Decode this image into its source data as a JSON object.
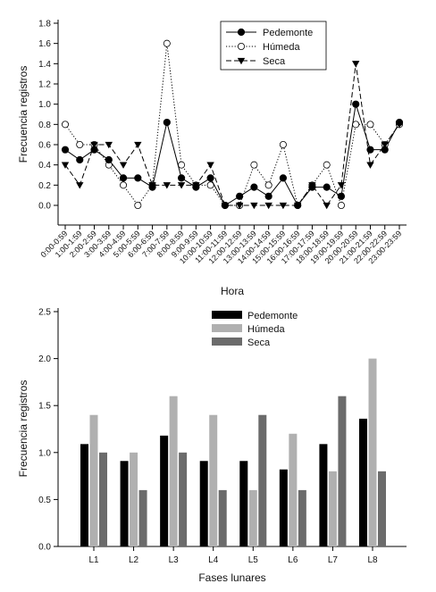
{
  "chart_data": [
    {
      "type": "line",
      "xlabel": "Hora",
      "ylabel": "Frecuencia registros",
      "ylim": [
        0,
        1.8
      ],
      "yticks": [
        "0.0",
        "0.2",
        "0.4",
        "0.6",
        "0.8",
        "1.0",
        "1.2",
        "1.4",
        "1.6",
        "1.8"
      ],
      "categories": [
        "0:00-0:59",
        "1:00-1:59",
        "2:00-2:59",
        "3:00-3:59",
        "4:00-4:59",
        "5:00-5:59",
        "6:00-6:59",
        "7:00-7:59",
        "8:00-8:59",
        "9:00-9:59",
        "10:00-10:59",
        "11:00-11:59",
        "12:00-12:59",
        "13:00-13:59",
        "14:00-14:59",
        "15:00-15:59",
        "16:00-16:59",
        "17:00-17:59",
        "18:00-18:59",
        "19:00-19:59",
        "20:00-20:59",
        "21:00-21:59",
        "22:00-22:59",
        "23:00-23:59"
      ],
      "legend_position": "top-right",
      "grid": false,
      "series": [
        {
          "name": "Pedemonte",
          "marker": "filled-circle",
          "line": "solid",
          "values": [
            0.55,
            0.45,
            0.55,
            0.45,
            0.27,
            0.27,
            0.18,
            0.82,
            0.27,
            0.18,
            0.27,
            0.0,
            0.09,
            0.18,
            0.09,
            0.27,
            0.0,
            0.18,
            0.18,
            0.09,
            1.0,
            0.55,
            0.55,
            0.82
          ]
        },
        {
          "name": "Húmeda",
          "marker": "open-circle",
          "line": "dotted",
          "values": [
            0.8,
            0.6,
            0.6,
            0.4,
            0.2,
            0.0,
            0.2,
            1.6,
            0.4,
            0.2,
            0.2,
            0.0,
            0.0,
            0.4,
            0.2,
            0.6,
            0.0,
            0.2,
            0.4,
            0.0,
            0.8,
            0.8,
            0.6,
            0.8
          ]
        },
        {
          "name": "Seca",
          "marker": "filled-triangle-down",
          "line": "dashed",
          "values": [
            0.4,
            0.2,
            0.6,
            0.6,
            0.4,
            0.6,
            0.2,
            0.2,
            0.2,
            0.2,
            0.4,
            0.0,
            0.0,
            0.0,
            0.0,
            0.0,
            0.0,
            0.2,
            0.0,
            0.2,
            1.4,
            0.4,
            0.6,
            0.8
          ]
        }
      ]
    },
    {
      "type": "bar",
      "xlabel": "Fases lunares",
      "ylabel": "Frecuencia registros",
      "ylim": [
        0,
        2.5
      ],
      "yticks": [
        "0.0",
        "0.5",
        "1.0",
        "1.5",
        "2.0",
        "2.5"
      ],
      "categories": [
        "L1",
        "L2",
        "L3",
        "L4",
        "L5",
        "L6",
        "L7",
        "L8"
      ],
      "legend_position": "top-center",
      "grid": false,
      "series": [
        {
          "name": "Pedemonte",
          "color": "#000000",
          "values": [
            1.09,
            0.91,
            1.18,
            0.91,
            0.91,
            0.82,
            1.09,
            1.36
          ]
        },
        {
          "name": "Húmeda",
          "color": "#b0b0b0",
          "values": [
            1.4,
            1.0,
            1.6,
            1.4,
            0.6,
            1.2,
            0.8,
            2.0
          ]
        },
        {
          "name": "Seca",
          "color": "#6b6b6b",
          "values": [
            1.0,
            0.6,
            1.0,
            0.6,
            1.4,
            0.6,
            1.6,
            0.8
          ]
        }
      ]
    }
  ]
}
